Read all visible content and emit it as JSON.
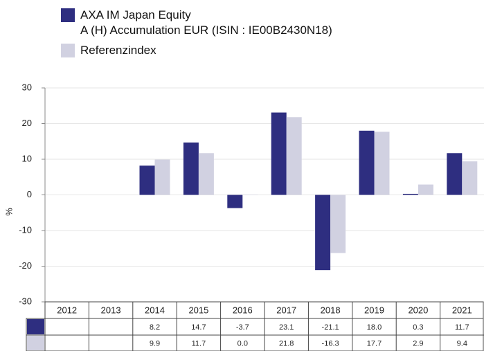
{
  "chart_data": {
    "type": "bar",
    "categories": [
      "2012",
      "2013",
      "2014",
      "2015",
      "2016",
      "2017",
      "2018",
      "2019",
      "2020",
      "2021"
    ],
    "series": [
      {
        "name": "AXA IM Japan Equity\nA (H) Accumulation EUR (ISIN : IE00B2430N18)",
        "color": "#2e2e80",
        "values": [
          null,
          null,
          8.2,
          14.7,
          -3.7,
          23.1,
          -21.1,
          18.0,
          0.3,
          11.7
        ],
        "value_labels": [
          null,
          null,
          "8.2",
          "14.7",
          "-3.7",
          "23.1",
          "-21.1",
          "18.0",
          "0.3",
          "11.7"
        ]
      },
      {
        "name": "Referenzindex",
        "color": "#d1d1e1",
        "values": [
          null,
          null,
          9.9,
          11.7,
          0.0,
          21.8,
          -16.3,
          17.7,
          2.9,
          9.4
        ],
        "value_labels": [
          null,
          null,
          "9.9",
          "11.7",
          "0.0",
          "21.8",
          "-16.3",
          "17.7",
          "2.9",
          "9.4"
        ]
      }
    ],
    "ylabel": "%",
    "ylim": [
      -30,
      30
    ],
    "yticks": [
      -30,
      -20,
      -10,
      0,
      10,
      20,
      30
    ],
    "grid": true
  }
}
